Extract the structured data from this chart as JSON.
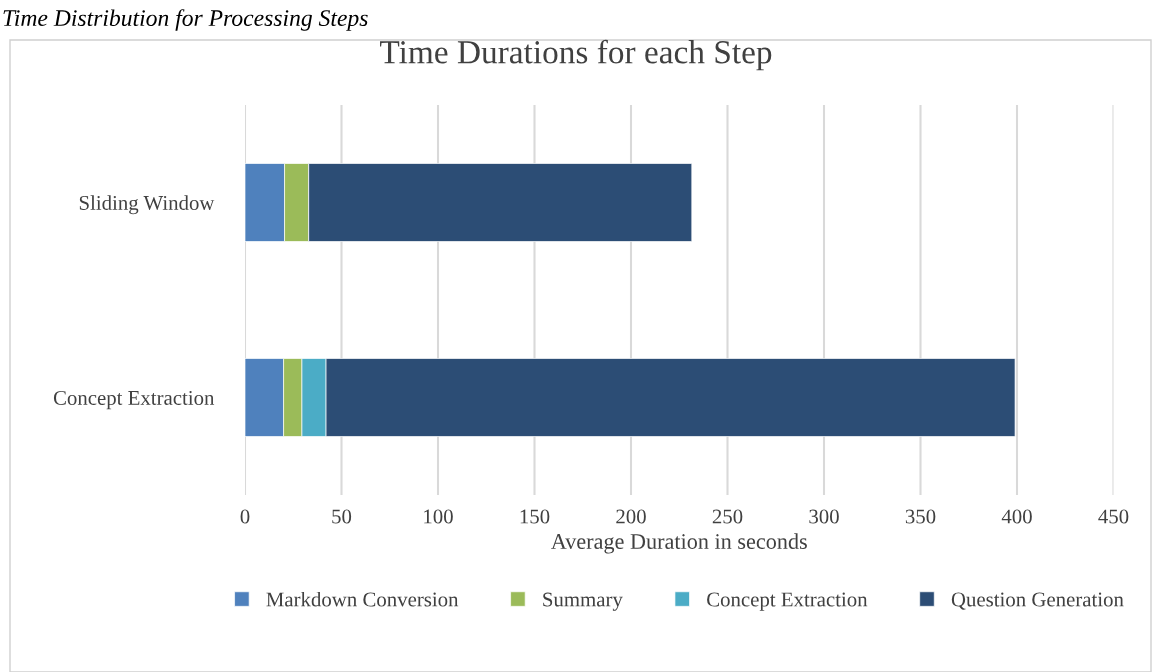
{
  "chart_data": {
    "type": "bar",
    "orientation": "horizontal",
    "stacked": true,
    "title": "Time Durations for each Step",
    "xlabel": "Average Duration in seconds",
    "annotations": [
      "Time Distribution for Processing Steps"
    ],
    "categories": [
      "Sliding Window",
      "Concept Extraction"
    ],
    "series": [
      {
        "name": "Markdown Conversion",
        "color": "#4f81bd",
        "values": [
          20.5,
          20
        ]
      },
      {
        "name": "Summary",
        "color": "#9bbb59",
        "values": [
          12.5,
          9.5
        ]
      },
      {
        "name": "Concept Extraction",
        "color": "#4bacc6",
        "values": [
          0,
          12.5
        ]
      },
      {
        "name": "Question Generation",
        "color": "#2c4d75",
        "values": [
          198.5,
          357
        ]
      }
    ],
    "xlim": [
      0,
      450
    ],
    "xticks": [
      0,
      50,
      100,
      150,
      200,
      250,
      300,
      350,
      400,
      450
    ],
    "grid": "x",
    "legend": "bottom"
  }
}
